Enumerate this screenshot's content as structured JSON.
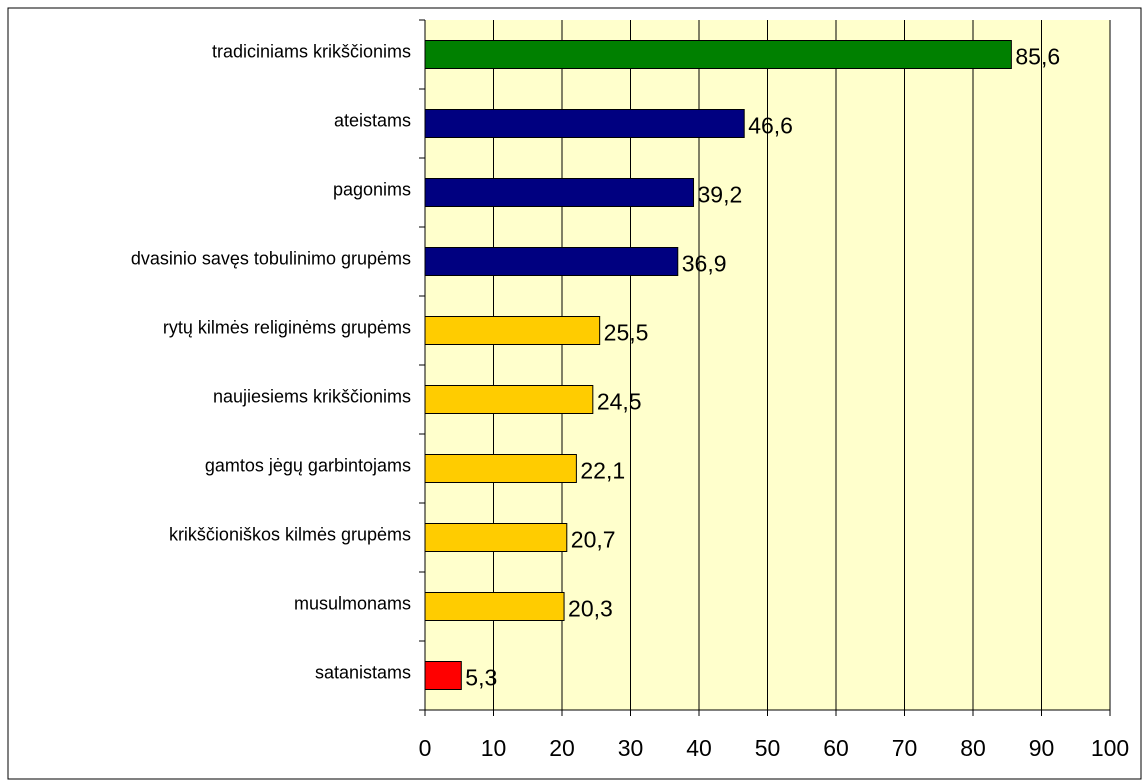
{
  "chart_data": {
    "type": "bar",
    "orientation": "horizontal",
    "categories": [
      "tradiciniams krikščionims",
      "ateistams",
      "pagonims",
      "dvasinio savęs tobulinimo grupėms",
      "rytų kilmės religinėms grupėms",
      "naujiesiems krikščionims",
      "gamtos jėgų garbintojams",
      "krikščioniškos kilmės grupėms",
      "musulmonams",
      "satanistams"
    ],
    "values": [
      85.6,
      46.6,
      39.2,
      36.9,
      25.5,
      24.5,
      22.1,
      20.7,
      20.3,
      5.3
    ],
    "value_labels": [
      "85,6",
      "46,6",
      "39,2",
      "36,9",
      "25,5",
      "24,5",
      "22,1",
      "20,7",
      "20,3",
      "5,3"
    ],
    "colors": [
      "#008000",
      "#000080",
      "#000080",
      "#000080",
      "#ffcc00",
      "#ffcc00",
      "#ffcc00",
      "#ffcc00",
      "#ffcc00",
      "#ff0000"
    ],
    "xlim": [
      0,
      100
    ],
    "xticks": [
      0,
      10,
      20,
      30,
      40,
      50,
      60,
      70,
      80,
      90,
      100
    ],
    "grid": true
  }
}
